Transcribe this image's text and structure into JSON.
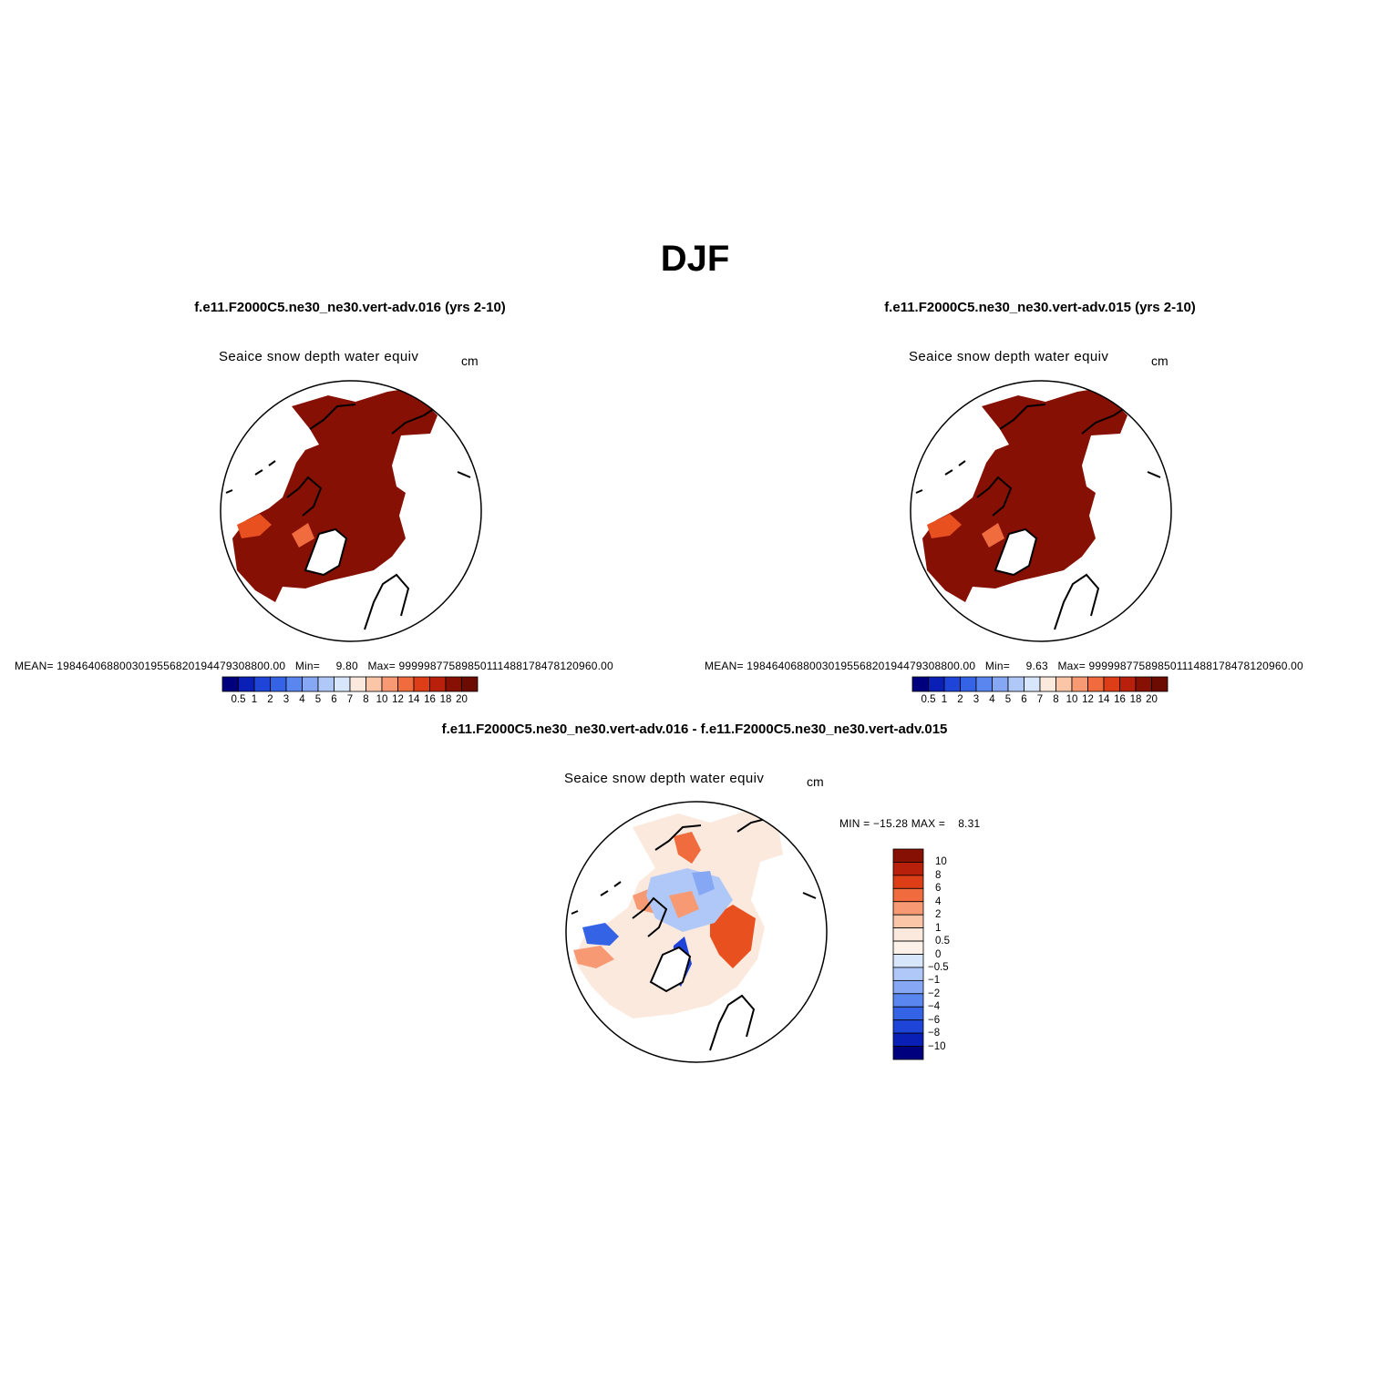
{
  "season": "DJF",
  "panels": [
    {
      "case_title": "f.e11.F2000C5.ne30_ne30.vert-adv.016 (yrs 2-10)",
      "field_title": "Seaice snow depth water equiv",
      "units": "cm",
      "stats": {
        "mean_label": "MEAN=",
        "mean_value": "1984640688003019556820194479308800.00",
        "min_label": "Min=",
        "min_value": "9.80",
        "max_label": "Max=",
        "max_value": "99999877589850111488178478120960.00"
      }
    },
    {
      "case_title": "f.e11.F2000C5.ne30_ne30.vert-adv.015 (yrs 2-10)",
      "field_title": "Seaice snow depth water equiv",
      "units": "cm",
      "stats": {
        "mean_label": "MEAN=",
        "mean_value": "1984640688003019556820194479308800.00",
        "min_label": "Min=",
        "min_value": "9.63",
        "max_label": "Max=",
        "max_value": "99999877589850111488178478120960.00"
      }
    }
  ],
  "diff_panel": {
    "case_title": "f.e11.F2000C5.ne30_ne30.vert-adv.016 - f.e11.F2000C5.ne30_ne30.vert-adv.015",
    "field_title": "Seaice snow depth water equiv",
    "units": "cm",
    "min_label": "MIN =",
    "min_value": "−15.28",
    "max_label": "MAX =",
    "max_value": "8.31"
  },
  "colorbar_levels": [
    "0.5",
    "1",
    "2",
    "3",
    "4",
    "5",
    "6",
    "7",
    "8",
    "10",
    "12",
    "14",
    "16",
    "18",
    "20"
  ],
  "colorbar_colors": [
    "#00007f",
    "#0a1fb5",
    "#1e44d8",
    "#3563e6",
    "#5a86ef",
    "#86a8f4",
    "#b0c8f8",
    "#d8e6fb",
    "#fbe9de",
    "#fbc6a8",
    "#f79a73",
    "#f06b3e",
    "#de3e17",
    "#b8200b",
    "#861003",
    "#6b0b02"
  ],
  "diff_levels": [
    "10",
    "8",
    "6",
    "4",
    "2",
    "1",
    "0.5",
    "0",
    "−0.5",
    "−1",
    "−2",
    "−4",
    "−6",
    "−8",
    "−10"
  ],
  "diff_colors": [
    "#861003",
    "#b8200b",
    "#de3e17",
    "#f06b3e",
    "#f79a73",
    "#fbc6a8",
    "#fbe9de",
    "#fbf1e8",
    "#d8e6fb",
    "#b0c8f8",
    "#86a8f4",
    "#5a86ef",
    "#3563e6",
    "#1e44d8",
    "#0a1fb5",
    "#00007f"
  ]
}
